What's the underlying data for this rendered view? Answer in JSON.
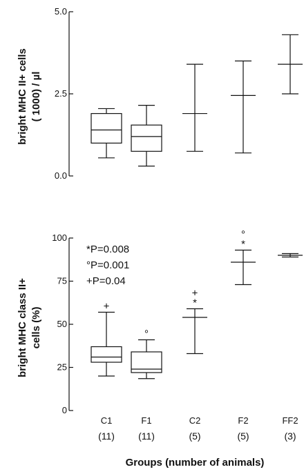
{
  "chart_data": [
    {
      "type": "box",
      "ylabel_line1": "bright MHC II+ cells",
      "ylabel_line2": "( 1000) / µl",
      "ylim": [
        0,
        5.0
      ],
      "yticks": [
        "0.0",
        "2.5",
        "5.0"
      ],
      "ytick_values": [
        0,
        2.5,
        5.0
      ],
      "categories": [
        "C1",
        "F1",
        "C2",
        "F2",
        "FF2"
      ],
      "groups": [
        {
          "category": "C1",
          "kind": "box",
          "min": 0.55,
          "q1": 1.0,
          "median": 1.4,
          "q3": 1.9,
          "max": 2.05
        },
        {
          "category": "F1",
          "kind": "box",
          "min": 0.3,
          "q1": 0.75,
          "median": 1.2,
          "q3": 1.55,
          "max": 2.15
        },
        {
          "category": "C2",
          "kind": "range",
          "min": 0.75,
          "center": 1.9,
          "max": 3.4
        },
        {
          "category": "F2",
          "kind": "range",
          "min": 0.7,
          "center": 2.45,
          "max": 3.5
        },
        {
          "category": "FF2",
          "kind": "range",
          "min": 2.5,
          "center": 3.4,
          "max": 4.3
        }
      ]
    },
    {
      "type": "box",
      "ylabel_line1": "bright MHC class II+",
      "ylabel_line2": "cells (%)",
      "ylim": [
        0,
        100
      ],
      "yticks": [
        "0",
        "25",
        "50",
        "75",
        "100"
      ],
      "ytick_values": [
        0,
        25,
        50,
        75,
        100
      ],
      "categories": [
        "C1",
        "F1",
        "C2",
        "F2",
        "FF2"
      ],
      "counts": [
        "(11)",
        "(11)",
        "(5)",
        "(5)",
        "(3)"
      ],
      "xlabel": "Groups (number of animals)",
      "annotations": [
        "*P=0.008",
        "°P=0.001",
        "+P=0.04"
      ],
      "groups": [
        {
          "category": "C1",
          "kind": "box",
          "min": 20,
          "q1": 28,
          "median": 31,
          "q3": 37,
          "max": 57,
          "markers": [
            "+"
          ]
        },
        {
          "category": "F1",
          "kind": "box",
          "min": 18.5,
          "q1": 22,
          "median": 24,
          "q3": 34,
          "max": 41,
          "markers": [
            "°"
          ]
        },
        {
          "category": "C2",
          "kind": "range",
          "min": 33,
          "center": 54,
          "max": 59,
          "markers": [
            "+",
            "*"
          ]
        },
        {
          "category": "F2",
          "kind": "range",
          "min": 73,
          "center": 86,
          "max": 93,
          "markers": [
            "°",
            "*"
          ]
        },
        {
          "category": "FF2",
          "kind": "range",
          "min": 89,
          "center": 90,
          "max": 91,
          "markers": []
        }
      ]
    }
  ]
}
